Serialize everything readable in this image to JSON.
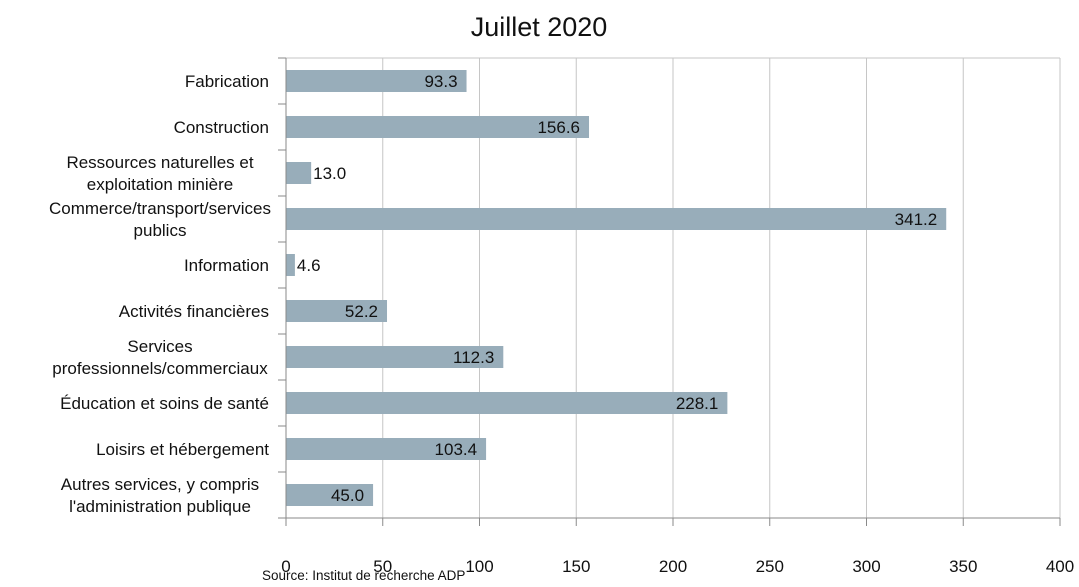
{
  "chart_data": {
    "type": "bar",
    "orientation": "horizontal",
    "title": "Juillet 2020",
    "categories": [
      "Fabrication",
      "Construction",
      "Ressources naturelles et exploitation minière",
      "Commerce/transport/services publics",
      "Information",
      "Activités financières",
      "Services professionnels/commerciaux",
      "Éducation et soins de santé",
      "Loisirs et hébergement",
      "Autres services, y compris l'administration publique"
    ],
    "category_lines": [
      [
        "Fabrication"
      ],
      [
        "Construction"
      ],
      [
        "Ressources naturelles et",
        "exploitation minière"
      ],
      [
        "Commerce/transport/services",
        "publics"
      ],
      [
        "Information"
      ],
      [
        "Activités financières"
      ],
      [
        "Services",
        "professionnels/commerciaux"
      ],
      [
        "Éducation et soins de santé"
      ],
      [
        "Loisirs et hébergement"
      ],
      [
        "Autres services, y compris",
        "l'administration publique"
      ]
    ],
    "values": [
      93.3,
      156.6,
      13.0,
      341.2,
      4.6,
      52.2,
      112.3,
      228.1,
      103.4,
      45.0
    ],
    "data_labels": [
      "93.3",
      "156.6",
      "13.0",
      "341.2",
      "4.6",
      "52.2",
      "112.3",
      "228.1",
      "103.4",
      "45.0"
    ],
    "xlim": [
      0,
      400
    ],
    "xticks": [
      0,
      50,
      100,
      150,
      200,
      250,
      300,
      350,
      400
    ],
    "xlabel": "",
    "ylabel": "",
    "grid": true,
    "legend": "none",
    "bar_color": "#98adba",
    "grid_color": "#c6c6c6",
    "source": "Source: Institut de recherche ADP"
  }
}
